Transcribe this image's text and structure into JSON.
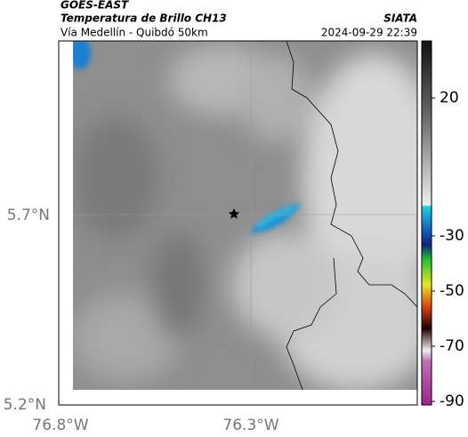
{
  "header": {
    "title": "GOES-EAST",
    "subtitle": "Temperatura de Brillo CH13",
    "location": "Vía Medellín - Quibdó 50km",
    "source": "SIATA",
    "datetime": "2024-09-29 22:39"
  },
  "map": {
    "lat_labels": [
      "5.7°N",
      "5.2°N"
    ],
    "lon_labels": [
      "76.8°W",
      "76.3°W"
    ]
  },
  "colorbar": {
    "ticks": [
      20,
      -30,
      -50,
      -70,
      -90
    ]
  }
}
